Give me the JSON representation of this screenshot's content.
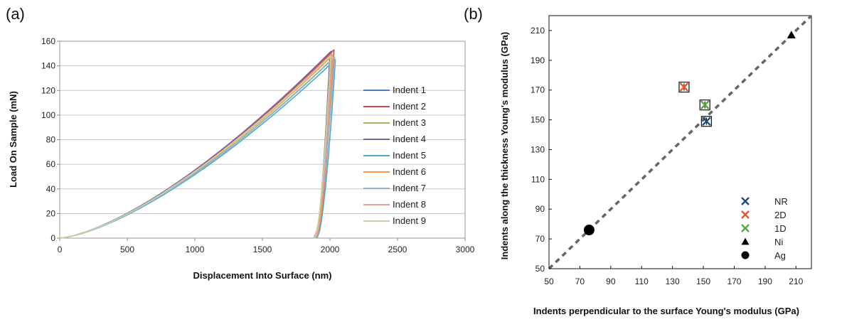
{
  "panels": {
    "a_label": "(a)",
    "b_label": "(b)"
  },
  "chart_data": [
    {
      "type": "line",
      "xlabel": "Displacement Into Surface (nm)",
      "ylabel": "Load On Sample (mN)",
      "xlim": [
        0,
        3000
      ],
      "ylim": [
        0,
        160
      ],
      "xticks": [
        "0",
        "500",
        "1000",
        "1500",
        "2000",
        "2500",
        "3000"
      ],
      "yticks": [
        "0",
        "20",
        "40",
        "60",
        "80",
        "100",
        "120",
        "140",
        "160"
      ],
      "grid": "horizontal",
      "legend_position": "right",
      "series": [
        {
          "name": "Indent 1",
          "color": "#4f81bd",
          "max_disp": 2010,
          "max_load": 152,
          "final_disp": 1895
        },
        {
          "name": "Indent 2",
          "color": "#c0504d",
          "max_disp": 2030,
          "max_load": 153,
          "final_disp": 1900
        },
        {
          "name": "Indent 3",
          "color": "#9bbb59",
          "max_disp": 2020,
          "max_load": 146,
          "final_disp": 1890
        },
        {
          "name": "Indent 4",
          "color": "#8064a2",
          "max_disp": 2000,
          "max_load": 151,
          "final_disp": 1892
        },
        {
          "name": "Indent 5",
          "color": "#4bacc6",
          "max_disp": 2040,
          "max_load": 145,
          "final_disp": 1905
        },
        {
          "name": "Indent 6",
          "color": "#f79646",
          "max_disp": 2025,
          "max_load": 149,
          "final_disp": 1898
        },
        {
          "name": "Indent 7",
          "color": "#95b3d7",
          "max_disp": 2035,
          "max_load": 147,
          "final_disp": 1880
        },
        {
          "name": "Indent 8",
          "color": "#e6a19d",
          "max_disp": 2015,
          "max_load": 150,
          "final_disp": 1893
        },
        {
          "name": "Indent 9",
          "color": "#c3d69b",
          "max_disp": 2005,
          "max_load": 148,
          "final_disp": 1887
        }
      ]
    },
    {
      "type": "scatter",
      "xlabel": "Indents perpendicular to the surface  Young's modulus (GPa)",
      "ylabel": "Indents along the thickness Young's modulus (GPa)",
      "xlim": [
        50,
        220
      ],
      "ylim": [
        50,
        220
      ],
      "xticks": [
        "50",
        "70",
        "90",
        "110",
        "130",
        "150",
        "170",
        "190",
        "210"
      ],
      "yticks": [
        "50",
        "70",
        "90",
        "110",
        "130",
        "150",
        "170",
        "190",
        "210"
      ],
      "grid": "none",
      "legend_position": "bottom-right",
      "reference_line": {
        "x": [
          50,
          220
        ],
        "y": [
          50,
          220
        ],
        "style": "dashed"
      },
      "series": [
        {
          "name": "NR",
          "marker": "x",
          "color": "#1f4e79",
          "points": [
            [
              152,
              149
            ]
          ]
        },
        {
          "name": "2D",
          "marker": "x",
          "color": "#e8542d",
          "points": [
            [
              137.5,
              172
            ]
          ]
        },
        {
          "name": "1D",
          "marker": "x",
          "color": "#57a83b",
          "points": [
            [
              151,
              160
            ]
          ]
        },
        {
          "name": "Ni",
          "marker": "triangle",
          "color": "#000000",
          "points": [
            [
              207,
              207
            ]
          ]
        },
        {
          "name": "Ag",
          "marker": "circle",
          "color": "#000000",
          "points": [
            [
              76,
              76
            ]
          ]
        }
      ]
    }
  ]
}
